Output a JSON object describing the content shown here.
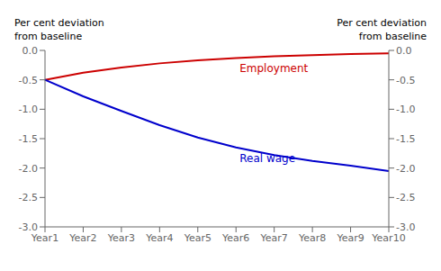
{
  "chart_data": {
    "type": "line",
    "categories": [
      "Year1",
      "Year2",
      "Year3",
      "Year4",
      "Year5",
      "Year6",
      "Year7",
      "Year8",
      "Year9",
      "Year10"
    ],
    "series": [
      {
        "name": "Employment",
        "color": "#cc0000",
        "values": [
          -0.5,
          -0.38,
          -0.29,
          -0.22,
          -0.17,
          -0.13,
          -0.1,
          -0.08,
          -0.06,
          -0.05
        ]
      },
      {
        "name": "Real wage",
        "color": "#0000cc",
        "values": [
          -0.5,
          -0.78,
          -1.03,
          -1.27,
          -1.48,
          -1.65,
          -1.78,
          -1.88,
          -1.96,
          -2.05
        ]
      }
    ],
    "ylim": [
      -3.0,
      0.0
    ],
    "yticks": [
      {
        "value": 0.0,
        "label": "0.0"
      },
      -0.5,
      {
        "value": -1.0,
        "label": "-1.0"
      },
      -1.5,
      {
        "value": -2.0,
        "label": "-2.0"
      },
      -2.5,
      {
        "value": -3.0,
        "label": "-3.0"
      }
    ],
    "y2lim": [
      -3.0,
      0.0
    ],
    "y2ticks": [
      {
        "value": 0.0,
        "label": "0.0"
      },
      -0.5,
      {
        "value": -1.0,
        "label": "-1.0"
      },
      -1.5,
      {
        "value": -2.0,
        "label": "-2.0"
      },
      -2.5,
      {
        "value": -3.0,
        "label": "-3.0"
      }
    ],
    "ylabel": "Per cent deviation\nfrom baseline",
    "y2label": "Per cent deviation\nfrom baseline",
    "grid": false
  }
}
